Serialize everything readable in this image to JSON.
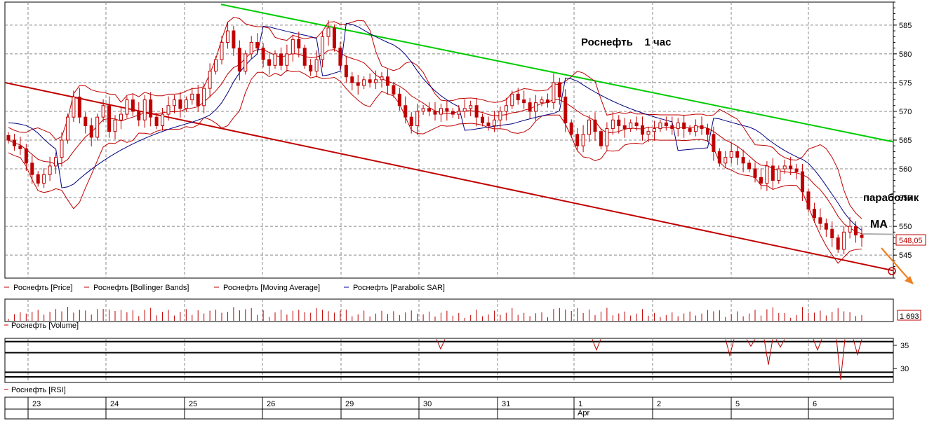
{
  "chart_data": {
    "type": "candlestick",
    "title": "Роснефть    1 час",
    "price_axis": {
      "ylim": [
        541,
        589
      ],
      "ticks": [
        545,
        550,
        555,
        560,
        565,
        570,
        575,
        580,
        585
      ],
      "tick_labels": [
        "545",
        "550",
        "555",
        "560",
        "565",
        "570",
        "575",
        "580",
        "585"
      ],
      "last_price_label": "548,05",
      "last_price": 548.05,
      "grid": true
    },
    "volume_panel": {
      "legend": "Роснефть [Volume]",
      "last_value_label": "1 693",
      "last_value": 1693
    },
    "rsi_panel": {
      "legend": "Роснефть [RSI]",
      "ylim": [
        27,
        36.5
      ],
      "ticks": [
        30,
        35
      ],
      "tick_labels": [
        "30",
        "35"
      ],
      "levels": [
        35.8,
        33.4,
        29.2,
        28.2
      ]
    },
    "x_axis": {
      "day_labels": [
        "23",
        "24",
        "25",
        "26",
        "29",
        "30",
        "31",
        "1",
        "2",
        "5",
        "6"
      ],
      "month_label": "Apr"
    },
    "legend": [
      {
        "label": "Роснефть [Price]",
        "color": "#c00000"
      },
      {
        "label": "Роснефть [Bollinger Bands]",
        "color": "#c00000"
      },
      {
        "label": "Роснефть [Moving Average]",
        "color": "#c00000"
      },
      {
        "label": "Роснефть [Parabolic SAR]",
        "color": "#0000a0"
      }
    ],
    "annotations": {
      "parabolic_label": "параболик",
      "ma_label": "МА"
    },
    "colors": {
      "candles": "#c00000",
      "bollinger": "#c00000",
      "sar": "#000080",
      "green_resistance": "#00cc00",
      "red_support": "#c00000",
      "arrow": "#f08020"
    },
    "closes": [
      565,
      564,
      563.5,
      561,
      559,
      557.5,
      559,
      560.5,
      562,
      565,
      569,
      572.5,
      569,
      567.5,
      565.5,
      569,
      571,
      566.5,
      568.5,
      569.5,
      572,
      570,
      568.5,
      572,
      569,
      567.5,
      569.5,
      571,
      572,
      570.5,
      572,
      573,
      571,
      574,
      577,
      579,
      582,
      584,
      581,
      577,
      580,
      582,
      581,
      579,
      578,
      580,
      578,
      580,
      582.5,
      581,
      578,
      577,
      579,
      583,
      584.5,
      581,
      578,
      576,
      575,
      574.5,
      575.5,
      575,
      575.5,
      576,
      574.5,
      573,
      571,
      569,
      567.5,
      570,
      570.5,
      570,
      569.5,
      570.5,
      570,
      569.5,
      570,
      570.5,
      571,
      569,
      568,
      567.5,
      568.5,
      570,
      571,
      573,
      572,
      571.5,
      570,
      571.5,
      572,
      571.5,
      575,
      572.5,
      568,
      566,
      564,
      566,
      568.5,
      566.5,
      564,
      567,
      568.5,
      567.5,
      567,
      568,
      567.5,
      566,
      566.5,
      567,
      568,
      567.5,
      567,
      568,
      567,
      566.5,
      567.5,
      567,
      566,
      563,
      561,
      562,
      563,
      562,
      561,
      560,
      558.5,
      557.5,
      560.5,
      558,
      560,
      560.5,
      560,
      559.5,
      556,
      553,
      551.5,
      550.5,
      549.5,
      548,
      546,
      549,
      550,
      548.5,
      548.05
    ]
  }
}
